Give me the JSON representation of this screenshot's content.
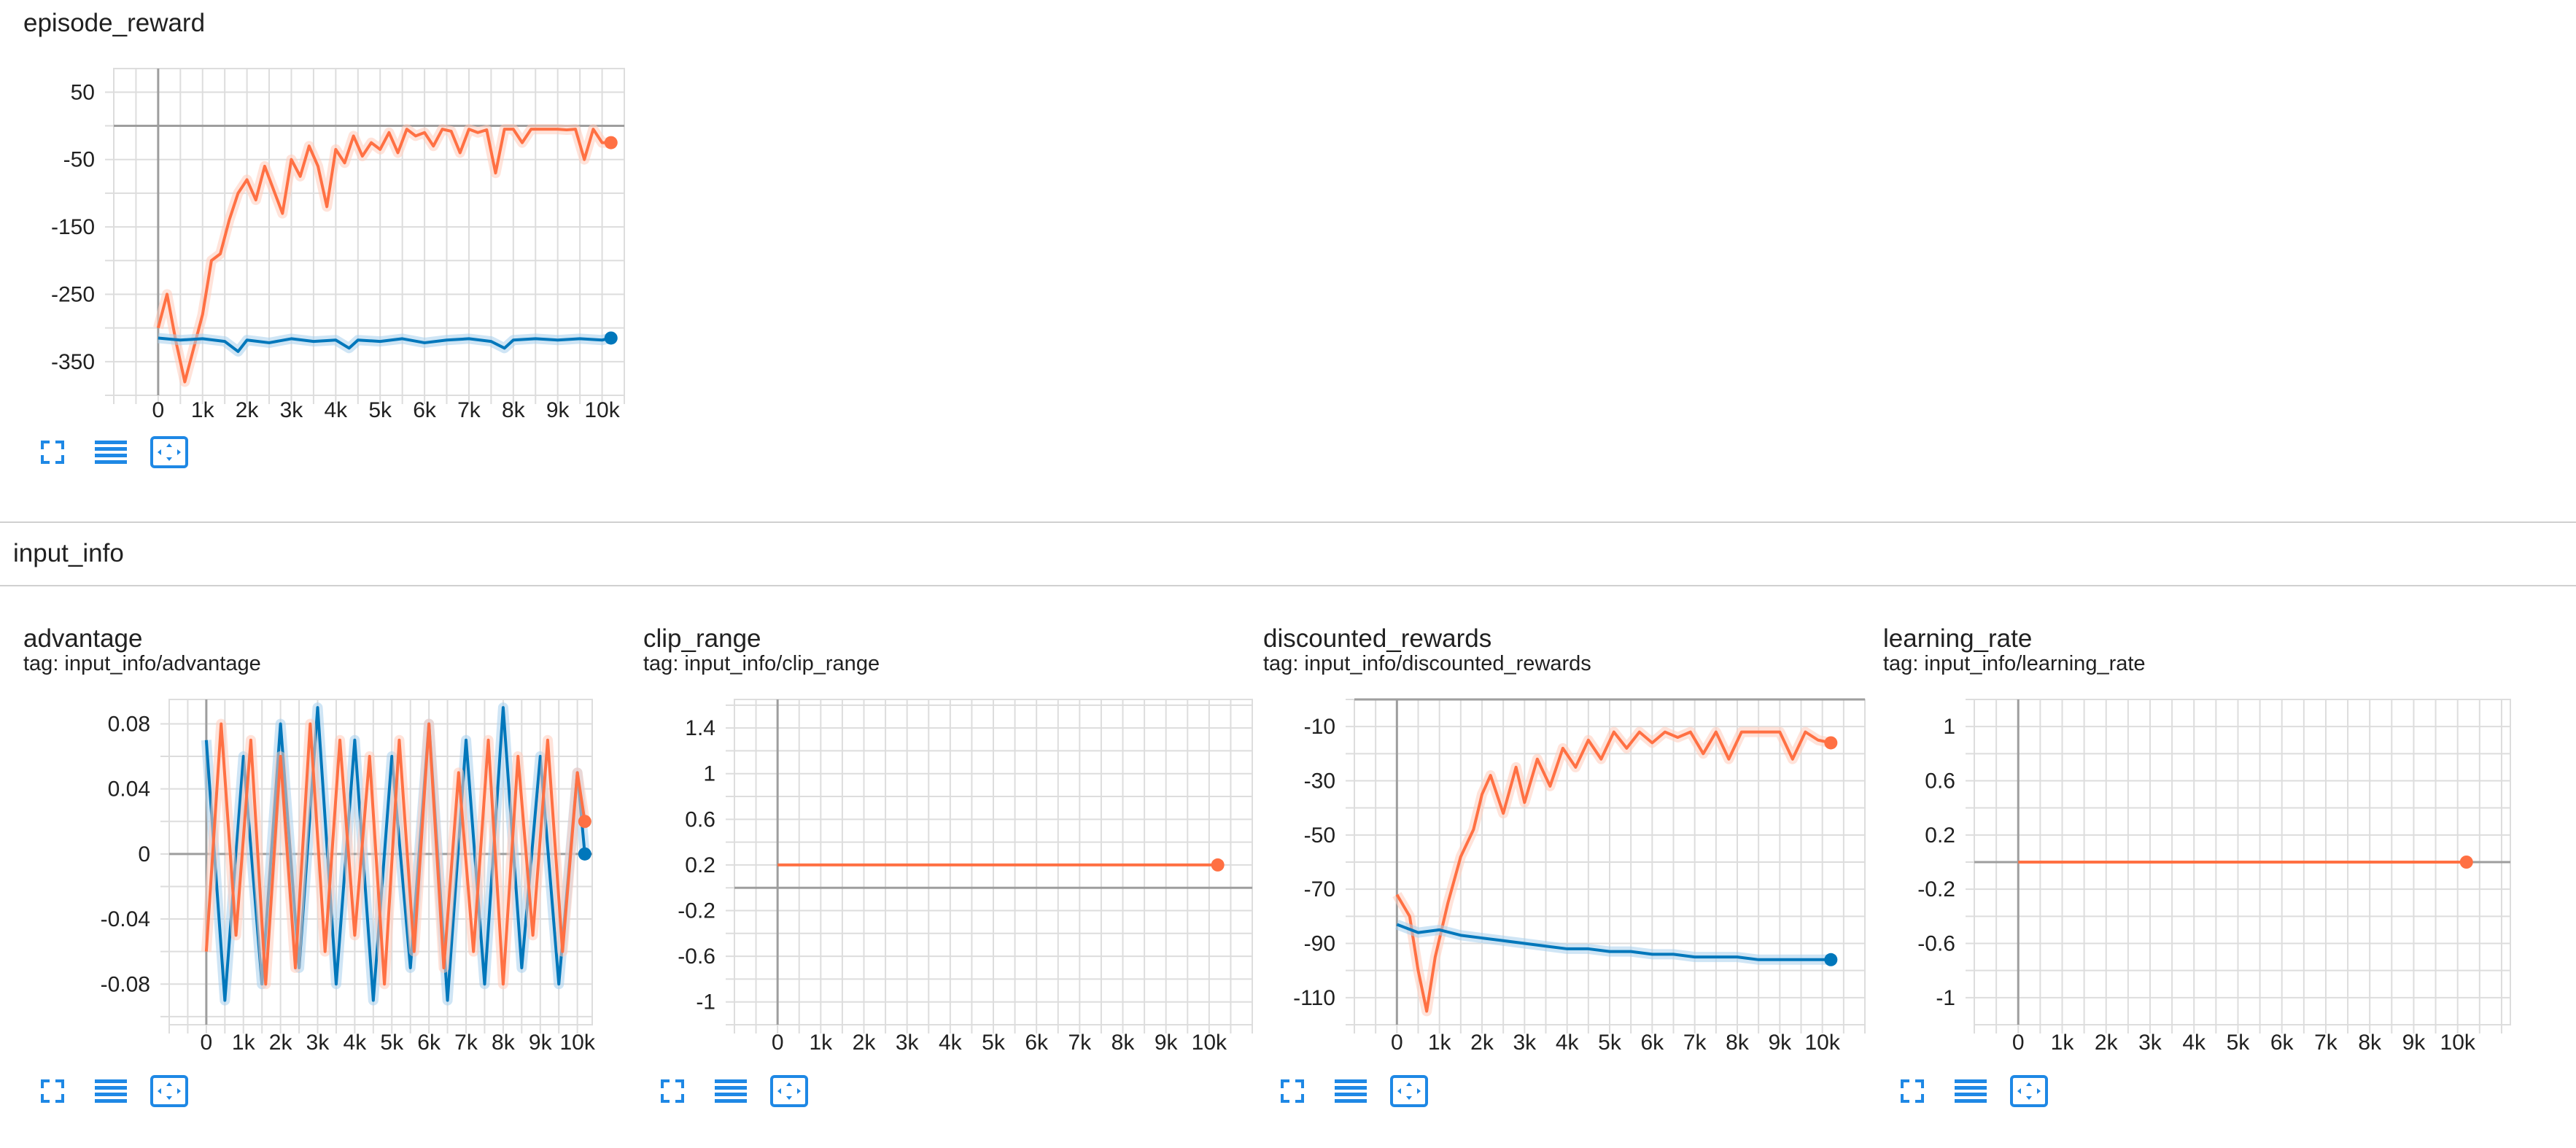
{
  "colors": {
    "orange": "#ff7043",
    "orange_light": "#ffccbc",
    "blue": "#0077bb",
    "blue_light": "#a8d0ec",
    "grid": "#dddddd",
    "axis": "#9e9e9e",
    "icon": "#1e88e5"
  },
  "icons": [
    "fullscreen-icon",
    "toggle-log-scale-icon",
    "fit-domain-icon"
  ],
  "sections": {
    "group_title": "input_info"
  },
  "cards": [
    {
      "title": "episode_reward",
      "tag": ""
    },
    {
      "title": "advantage",
      "tag": "tag: input_info/advantage"
    },
    {
      "title": "clip_range",
      "tag": "tag: input_info/clip_range"
    },
    {
      "title": "discounted_rewards",
      "tag": "tag: input_info/discounted_rewards"
    },
    {
      "title": "learning_rate",
      "tag": "tag: input_info/learning_rate"
    }
  ],
  "chart_data": [
    {
      "type": "line",
      "title": "episode_reward",
      "xlim": [
        -1000,
        10500
      ],
      "ylim": [
        -400,
        85
      ],
      "x_ticks": [
        0,
        1000,
        2000,
        3000,
        4000,
        5000,
        6000,
        7000,
        8000,
        9000,
        10000
      ],
      "x_tick_labels": [
        "0",
        "1k",
        "2k",
        "3k",
        "4k",
        "5k",
        "6k",
        "7k",
        "8k",
        "9k",
        "10k"
      ],
      "y_ticks": [
        50,
        -50,
        -150,
        -250,
        -350
      ],
      "y_tick_labels": [
        "50",
        "-50",
        "-150",
        "-250",
        "-350"
      ],
      "zero_line": 0,
      "series": [
        {
          "color": "orange",
          "x": [
            0,
            200,
            400,
            600,
            800,
            1000,
            1200,
            1400,
            1600,
            1800,
            2000,
            2200,
            2400,
            2600,
            2800,
            3000,
            3200,
            3400,
            3600,
            3800,
            4000,
            4200,
            4400,
            4600,
            4800,
            5000,
            5200,
            5400,
            5600,
            5800,
            6000,
            6200,
            6400,
            6600,
            6800,
            7000,
            7200,
            7400,
            7600,
            7800,
            8000,
            8200,
            8400,
            8600,
            8800,
            9000,
            9200,
            9400,
            9600,
            9800,
            10000,
            10200
          ],
          "y": [
            -300,
            -250,
            -320,
            -380,
            -330,
            -280,
            -200,
            -190,
            -140,
            -100,
            -80,
            -110,
            -60,
            -95,
            -130,
            -50,
            -75,
            -30,
            -60,
            -120,
            -35,
            -55,
            -15,
            -45,
            -25,
            -35,
            -10,
            -40,
            -5,
            -15,
            -10,
            -30,
            -5,
            -8,
            -40,
            -5,
            -10,
            -6,
            -70,
            -5,
            -5,
            -25,
            -5,
            -5,
            -5,
            -5,
            -6,
            -5,
            -50,
            -5,
            -25,
            -25
          ]
        },
        {
          "color": "blue",
          "x": [
            0,
            500,
            1000,
            1500,
            1800,
            2000,
            2500,
            3000,
            3500,
            4000,
            4300,
            4500,
            5000,
            5500,
            6000,
            6500,
            7000,
            7500,
            7800,
            8000,
            8500,
            9000,
            9500,
            10000,
            10200
          ],
          "y": [
            -315,
            -318,
            -316,
            -320,
            -335,
            -318,
            -322,
            -316,
            -320,
            -318,
            -330,
            -318,
            -320,
            -316,
            -322,
            -318,
            -316,
            -320,
            -330,
            -318,
            -316,
            -318,
            -316,
            -318,
            -315
          ]
        }
      ]
    },
    {
      "type": "line",
      "title": "advantage",
      "xlim": [
        -1000,
        10400
      ],
      "ylim": [
        -0.105,
        0.095
      ],
      "x_ticks": [
        0,
        1000,
        2000,
        3000,
        4000,
        5000,
        6000,
        7000,
        8000,
        9000,
        10000
      ],
      "x_tick_labels": [
        "0",
        "1k",
        "2k",
        "3k",
        "4k",
        "5k",
        "6k",
        "7k",
        "8k",
        "9k",
        "10k"
      ],
      "y_ticks": [
        0.08,
        0.04,
        0,
        -0.04,
        -0.08
      ],
      "y_tick_labels": [
        "0.08",
        "0.04",
        "0",
        "-0.04",
        "-0.08"
      ],
      "zero_line": 0,
      "series": [
        {
          "color": "blue",
          "x": [
            0,
            500,
            1000,
            1500,
            2000,
            2500,
            3000,
            3500,
            4000,
            4500,
            5000,
            5500,
            6000,
            6500,
            7000,
            7500,
            8000,
            8500,
            9000,
            9500,
            10000,
            10200
          ],
          "y": [
            0.07,
            -0.09,
            0.06,
            -0.08,
            0.08,
            -0.07,
            0.09,
            -0.08,
            0.07,
            -0.09,
            0.06,
            -0.07,
            0.08,
            -0.09,
            0.07,
            -0.08,
            0.09,
            -0.07,
            0.06,
            -0.08,
            0.05,
            0.0
          ]
        },
        {
          "color": "orange",
          "x": [
            0,
            400,
            800,
            1200,
            1600,
            2000,
            2400,
            2800,
            3200,
            3600,
            4000,
            4400,
            4800,
            5200,
            5600,
            6000,
            6400,
            6800,
            7200,
            7600,
            8000,
            8400,
            8800,
            9200,
            9600,
            10000,
            10200
          ],
          "y": [
            -0.06,
            0.08,
            -0.05,
            0.07,
            -0.08,
            0.06,
            -0.07,
            0.08,
            -0.06,
            0.07,
            -0.05,
            0.06,
            -0.08,
            0.07,
            -0.06,
            0.08,
            -0.07,
            0.05,
            -0.06,
            0.07,
            -0.08,
            0.06,
            -0.05,
            0.07,
            -0.06,
            0.05,
            0.02
          ]
        }
      ]
    },
    {
      "type": "line",
      "title": "clip_range",
      "xlim": [
        -1000,
        11000
      ],
      "ylim": [
        -1.2,
        1.65
      ],
      "x_ticks": [
        0,
        1000,
        2000,
        3000,
        4000,
        5000,
        6000,
        7000,
        8000,
        9000,
        10000
      ],
      "x_tick_labels": [
        "0",
        "1k",
        "2k",
        "3k",
        "4k",
        "5k",
        "6k",
        "7k",
        "8k",
        "9k",
        "10k"
      ],
      "y_ticks": [
        1.4,
        1,
        0.6,
        0.2,
        -0.2,
        -0.6,
        -1
      ],
      "y_tick_labels": [
        "1.4",
        "1",
        "0.6",
        "0.2",
        "-0.2",
        "-0.6",
        "-1"
      ],
      "zero_line": 0,
      "series": [
        {
          "color": "orange",
          "x": [
            0,
            10200
          ],
          "y": [
            0.2,
            0.2
          ]
        }
      ]
    },
    {
      "type": "line",
      "title": "discounted_rewards",
      "xlim": [
        -1000,
        11000
      ],
      "ylim": [
        -120,
        0
      ],
      "x_ticks": [
        0,
        1000,
        2000,
        3000,
        4000,
        5000,
        6000,
        7000,
        8000,
        9000,
        10000
      ],
      "x_tick_labels": [
        "0",
        "1k",
        "2k",
        "3k",
        "4k",
        "5k",
        "6k",
        "7k",
        "8k",
        "9k",
        "10k"
      ],
      "y_ticks": [
        -10,
        -30,
        -50,
        -70,
        -90,
        -110
      ],
      "y_tick_labels": [
        "-10",
        "-30",
        "-50",
        "-70",
        "-90",
        "-110"
      ],
      "zero_line": 0,
      "series": [
        {
          "color": "orange",
          "x": [
            0,
            300,
            500,
            700,
            900,
            1200,
            1500,
            1800,
            2000,
            2200,
            2500,
            2800,
            3000,
            3300,
            3600,
            3900,
            4200,
            4500,
            4800,
            5100,
            5400,
            5700,
            6000,
            6300,
            6600,
            6900,
            7200,
            7500,
            7800,
            8100,
            8400,
            8700,
            9000,
            9300,
            9600,
            9900,
            10200
          ],
          "y": [
            -72,
            -80,
            -100,
            -115,
            -95,
            -75,
            -58,
            -48,
            -35,
            -28,
            -42,
            -25,
            -38,
            -22,
            -32,
            -18,
            -25,
            -15,
            -22,
            -12,
            -18,
            -12,
            -16,
            -12,
            -14,
            -12,
            -20,
            -12,
            -22,
            -12,
            -12,
            -12,
            -12,
            -22,
            -12,
            -15,
            -16
          ]
        },
        {
          "color": "blue",
          "x": [
            0,
            500,
            1000,
            1500,
            2000,
            2500,
            3000,
            3500,
            4000,
            4500,
            5000,
            5500,
            6000,
            6500,
            7000,
            7500,
            8000,
            8500,
            9000,
            9500,
            10000,
            10200
          ],
          "y": [
            -83,
            -86,
            -85,
            -87,
            -88,
            -89,
            -90,
            -91,
            -92,
            -92,
            -93,
            -93,
            -94,
            -94,
            -95,
            -95,
            -95,
            -96,
            -96,
            -96,
            -96,
            -96
          ]
        }
      ]
    },
    {
      "type": "line",
      "title": "learning_rate",
      "xlim": [
        -1000,
        11200
      ],
      "ylim": [
        -1.2,
        1.2
      ],
      "x_ticks": [
        0,
        1000,
        2000,
        3000,
        4000,
        5000,
        6000,
        7000,
        8000,
        9000,
        10000
      ],
      "x_tick_labels": [
        "0",
        "1k",
        "2k",
        "3k",
        "4k",
        "5k",
        "6k",
        "7k",
        "8k",
        "9k",
        "10k"
      ],
      "y_ticks": [
        1,
        0.6,
        0.2,
        -0.2,
        -0.6,
        -1
      ],
      "y_tick_labels": [
        "1",
        "0.6",
        "0.2",
        "-0.2",
        "-0.6",
        "-1"
      ],
      "zero_line": 0,
      "series": [
        {
          "color": "orange",
          "x": [
            0,
            10200
          ],
          "y": [
            0.0,
            0.0
          ]
        }
      ]
    }
  ]
}
